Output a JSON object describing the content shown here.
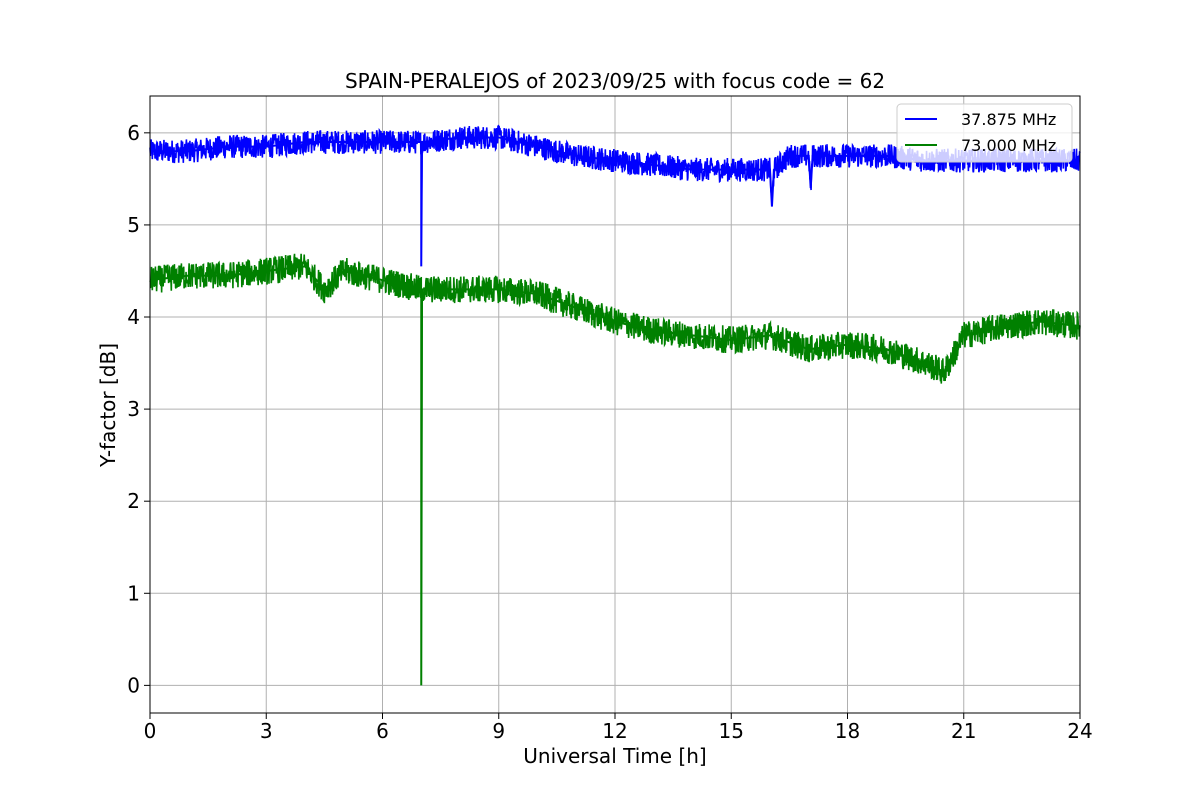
{
  "chart_data": {
    "type": "line",
    "title": "SPAIN-PERALEJOS of 2023/09/25 with focus code = 62",
    "xlabel": "Universal Time [h]",
    "ylabel": "Y-factor [dB]",
    "xlim": [
      0,
      24
    ],
    "ylim": [
      -0.3,
      6.4
    ],
    "xticks": [
      "0",
      "3",
      "6",
      "9",
      "12",
      "15",
      "18",
      "21",
      "24"
    ],
    "yticks": [
      "0",
      "1",
      "2",
      "3",
      "4",
      "5",
      "6"
    ],
    "grid": true,
    "legend_position": "top-right",
    "series": [
      {
        "name": "37.875 MHz",
        "color": "#0000ff",
        "noise_band": 0.13,
        "x": [
          0,
          1,
          2,
          3,
          4,
          5,
          6,
          7,
          7.0,
          7.02,
          7.04,
          8,
          9,
          10,
          11,
          12,
          13,
          14,
          15,
          16,
          16.05,
          16.1,
          16.5,
          17,
          17.05,
          17.1,
          18,
          19,
          20,
          21,
          22,
          23,
          24
        ],
        "y": [
          5.8,
          5.8,
          5.85,
          5.85,
          5.9,
          5.9,
          5.9,
          5.9,
          4.55,
          5.9,
          5.9,
          5.95,
          5.95,
          5.85,
          5.75,
          5.7,
          5.65,
          5.6,
          5.6,
          5.6,
          5.2,
          5.6,
          5.75,
          5.75,
          5.4,
          5.75,
          5.75,
          5.75,
          5.7,
          5.7,
          5.7,
          5.7,
          5.7
        ]
      },
      {
        "name": "73.000 MHz",
        "color": "#008000",
        "noise_band": 0.15,
        "x": [
          0,
          1,
          2,
          3,
          4,
          4.5,
          5,
          6,
          7,
          7.0,
          7.02,
          7.04,
          8,
          9,
          10,
          11,
          12,
          13,
          14,
          15,
          16,
          17,
          18,
          19,
          20,
          20.5,
          21,
          22,
          23,
          24
        ],
        "y": [
          4.4,
          4.45,
          4.45,
          4.5,
          4.55,
          4.3,
          4.5,
          4.4,
          4.3,
          0.0,
          4.3,
          4.3,
          4.3,
          4.3,
          4.25,
          4.1,
          3.95,
          3.85,
          3.8,
          3.75,
          3.8,
          3.65,
          3.7,
          3.65,
          3.5,
          3.4,
          3.8,
          3.9,
          3.95,
          3.9
        ]
      }
    ]
  }
}
